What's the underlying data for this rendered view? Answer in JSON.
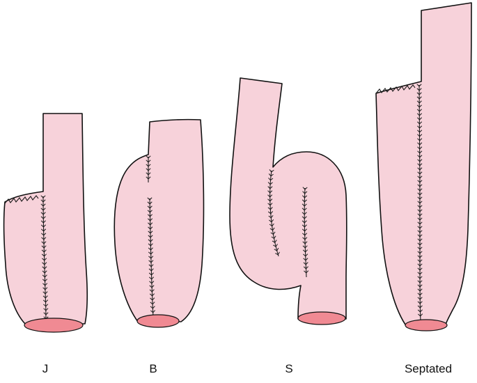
{
  "diagram": {
    "colors": {
      "pouch_fill": "#f7d2da",
      "opening_fill": "#f08a93",
      "outline": "#111111"
    },
    "pouches": [
      {
        "id": "j",
        "label": "J"
      },
      {
        "id": "b",
        "label": "B"
      },
      {
        "id": "s",
        "label": "S"
      },
      {
        "id": "septated",
        "label": "Septated"
      }
    ]
  }
}
